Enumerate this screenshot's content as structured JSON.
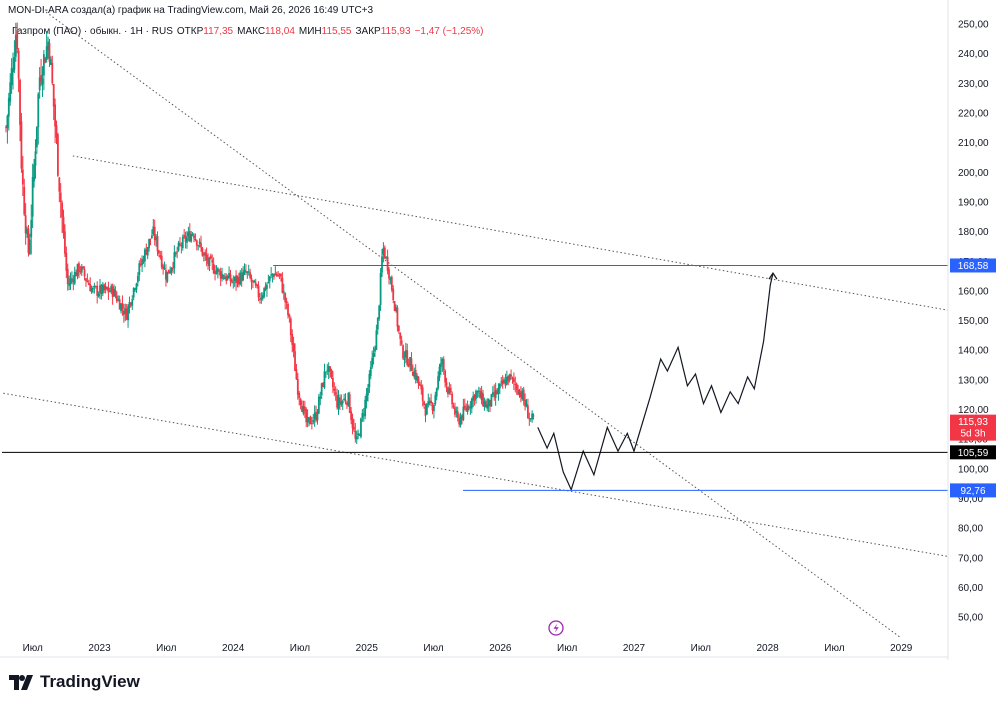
{
  "credit": "MON-DI-ARA создал(а) график на TradingView.com, Май 26, 2026 16:49 UTC+3",
  "legend": {
    "symbol": "Газпром (ПАО) · обыкн. · 1Н · RUS",
    "open_label": "ОТКР",
    "open": "117,35",
    "high_label": "МАКС",
    "high": "118,04",
    "low_label": "МИН",
    "low": "115,55",
    "close_label": "ЗАКР",
    "close": "115,93",
    "change": "−1,47 (−1,25%)"
  },
  "chart_data": {
    "type": "candlestick",
    "y_axis": {
      "min": 43,
      "max": 252,
      "ticks": [
        50,
        60,
        70,
        80,
        90,
        100,
        110,
        120,
        130,
        140,
        150,
        160,
        170,
        180,
        190,
        200,
        210,
        220,
        230,
        240,
        250
      ]
    },
    "x_axis": {
      "labels": [
        "Июл",
        "2023",
        "Июл",
        "2024",
        "Июл",
        "2025",
        "Июл",
        "2026",
        "Июл",
        "2027",
        "Июл",
        "2028",
        "Июл",
        "2029"
      ]
    },
    "price_anchors": [
      [
        2022.3,
        215
      ],
      [
        2022.38,
        250
      ],
      [
        2022.42,
        198
      ],
      [
        2022.47,
        172
      ],
      [
        2022.55,
        232
      ],
      [
        2022.62,
        245
      ],
      [
        2022.7,
        196
      ],
      [
        2022.76,
        162
      ],
      [
        2022.85,
        168
      ],
      [
        2022.95,
        160
      ],
      [
        2023.1,
        160
      ],
      [
        2023.2,
        152
      ],
      [
        2023.3,
        168
      ],
      [
        2023.4,
        180
      ],
      [
        2023.5,
        165
      ],
      [
        2023.6,
        175
      ],
      [
        2023.7,
        180
      ],
      [
        2023.8,
        170
      ],
      [
        2023.9,
        166
      ],
      [
        2024.0,
        163
      ],
      [
        2024.1,
        166
      ],
      [
        2024.2,
        158
      ],
      [
        2024.3,
        166
      ],
      [
        2024.35,
        165
      ],
      [
        2024.42,
        150
      ],
      [
        2024.48,
        128
      ],
      [
        2024.55,
        115
      ],
      [
        2024.62,
        118
      ],
      [
        2024.7,
        135
      ],
      [
        2024.78,
        122
      ],
      [
        2024.86,
        124
      ],
      [
        2024.92,
        108
      ],
      [
        2024.96,
        116
      ],
      [
        2025.02,
        130
      ],
      [
        2025.08,
        148
      ],
      [
        2025.12,
        175
      ],
      [
        2025.16,
        168
      ],
      [
        2025.2,
        158
      ],
      [
        2025.26,
        140
      ],
      [
        2025.32,
        136
      ],
      [
        2025.38,
        130
      ],
      [
        2025.44,
        120
      ],
      [
        2025.5,
        122
      ],
      [
        2025.56,
        137
      ],
      [
        2025.6,
        128
      ],
      [
        2025.68,
        116
      ],
      [
        2025.74,
        120
      ],
      [
        2025.82,
        126
      ],
      [
        2025.9,
        121
      ],
      [
        2025.98,
        126
      ],
      [
        2026.06,
        131
      ],
      [
        2026.12,
        128
      ],
      [
        2026.16,
        125
      ],
      [
        2026.22,
        117
      ],
      [
        2026.25,
        116
      ]
    ],
    "last_price": "115,93",
    "countdown": "5d 3h",
    "forecast_path": [
      [
        2026.28,
        114
      ],
      [
        2026.35,
        107
      ],
      [
        2026.4,
        112
      ],
      [
        2026.47,
        99
      ],
      [
        2026.53,
        93
      ],
      [
        2026.62,
        106
      ],
      [
        2026.7,
        98
      ],
      [
        2026.8,
        114
      ],
      [
        2026.88,
        106
      ],
      [
        2026.95,
        112
      ],
      [
        2027.0,
        106
      ],
      [
        2027.12,
        124
      ],
      [
        2027.2,
        137
      ],
      [
        2027.25,
        133
      ],
      [
        2027.33,
        141
      ],
      [
        2027.4,
        128
      ],
      [
        2027.46,
        132
      ],
      [
        2027.52,
        122
      ],
      [
        2027.58,
        128
      ],
      [
        2027.65,
        119
      ],
      [
        2027.72,
        126
      ],
      [
        2027.78,
        122
      ],
      [
        2027.85,
        131
      ],
      [
        2027.9,
        127
      ],
      [
        2027.97,
        143
      ],
      [
        2028.02,
        162
      ],
      [
        2028.04,
        166
      ]
    ],
    "trend_lines": [
      {
        "from": [
          2022.8,
          205.5
        ],
        "to": [
          2029.35,
          153.5
        ]
      },
      {
        "from": [
          2022.28,
          125.5
        ],
        "to": [
          2029.35,
          70.5
        ]
      },
      {
        "from": [
          2022.6,
          254
        ],
        "to": [
          2029.0,
          43
        ]
      }
    ],
    "levels": [
      {
        "value": 168.58,
        "label": "168,58",
        "from_x": 2024.3,
        "color": "#2962ff"
      },
      {
        "value": 105.59,
        "label": "105,59",
        "from_x": 2022.27,
        "color": "#000000"
      },
      {
        "value": 92.76,
        "label": "92,76",
        "from_x": 2025.72,
        "color": "#2962ff"
      }
    ],
    "up_color": "#089981",
    "down_color": "#f23645",
    "last_badge_color": "#f23645"
  },
  "brand": {
    "name": "TradingView"
  }
}
